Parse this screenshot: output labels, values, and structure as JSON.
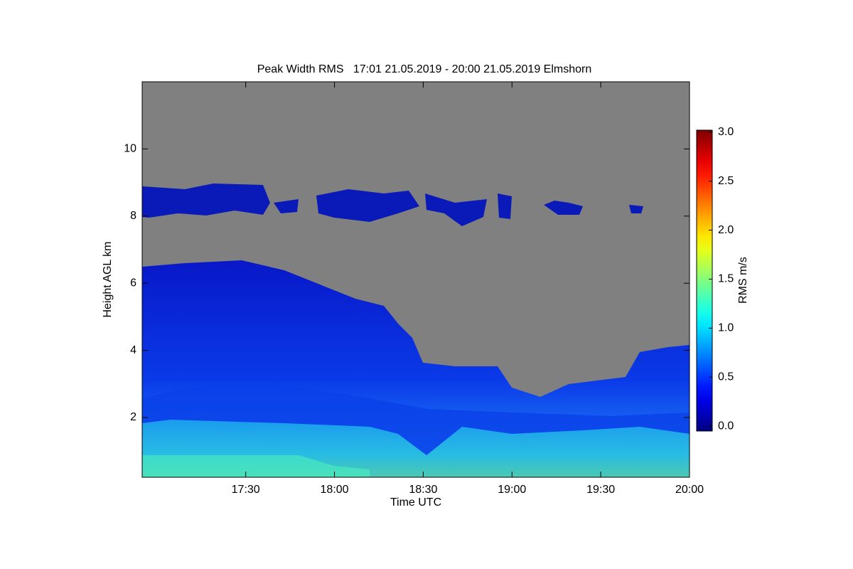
{
  "chart_data": {
    "type": "heatmap",
    "title": "Peak Width RMS   17:01 21.05.2019 - 20:00 21.05.2019 Elmshorn",
    "xlabel": "Time UTC",
    "ylabel": "Height AGL km",
    "xlim": [
      1015,
      1200
    ],
    "xticks": [
      {
        "value": 1050,
        "label": "17:30"
      },
      {
        "value": 1080,
        "label": "18:00"
      },
      {
        "value": 1110,
        "label": "18:30"
      },
      {
        "value": 1140,
        "label": "19:00"
      },
      {
        "value": 1170,
        "label": "19:30"
      },
      {
        "value": 1200,
        "label": "20:00"
      }
    ],
    "ylim": [
      0.22,
      12
    ],
    "yticks": [
      2,
      4,
      6,
      8,
      10
    ],
    "colorbar": {
      "label": "RMS m/s",
      "colormap": "jet",
      "lim": [
        -0.05,
        3.02
      ],
      "ticks": [
        {
          "value": 0,
          "label": "0.0"
        },
        0.5,
        {
          "value": 1,
          "label": "1.0"
        },
        1.5,
        {
          "value": 2,
          "label": "2.0"
        },
        2.5,
        {
          "value": 3,
          "label": "3.0"
        }
      ]
    }
  }
}
